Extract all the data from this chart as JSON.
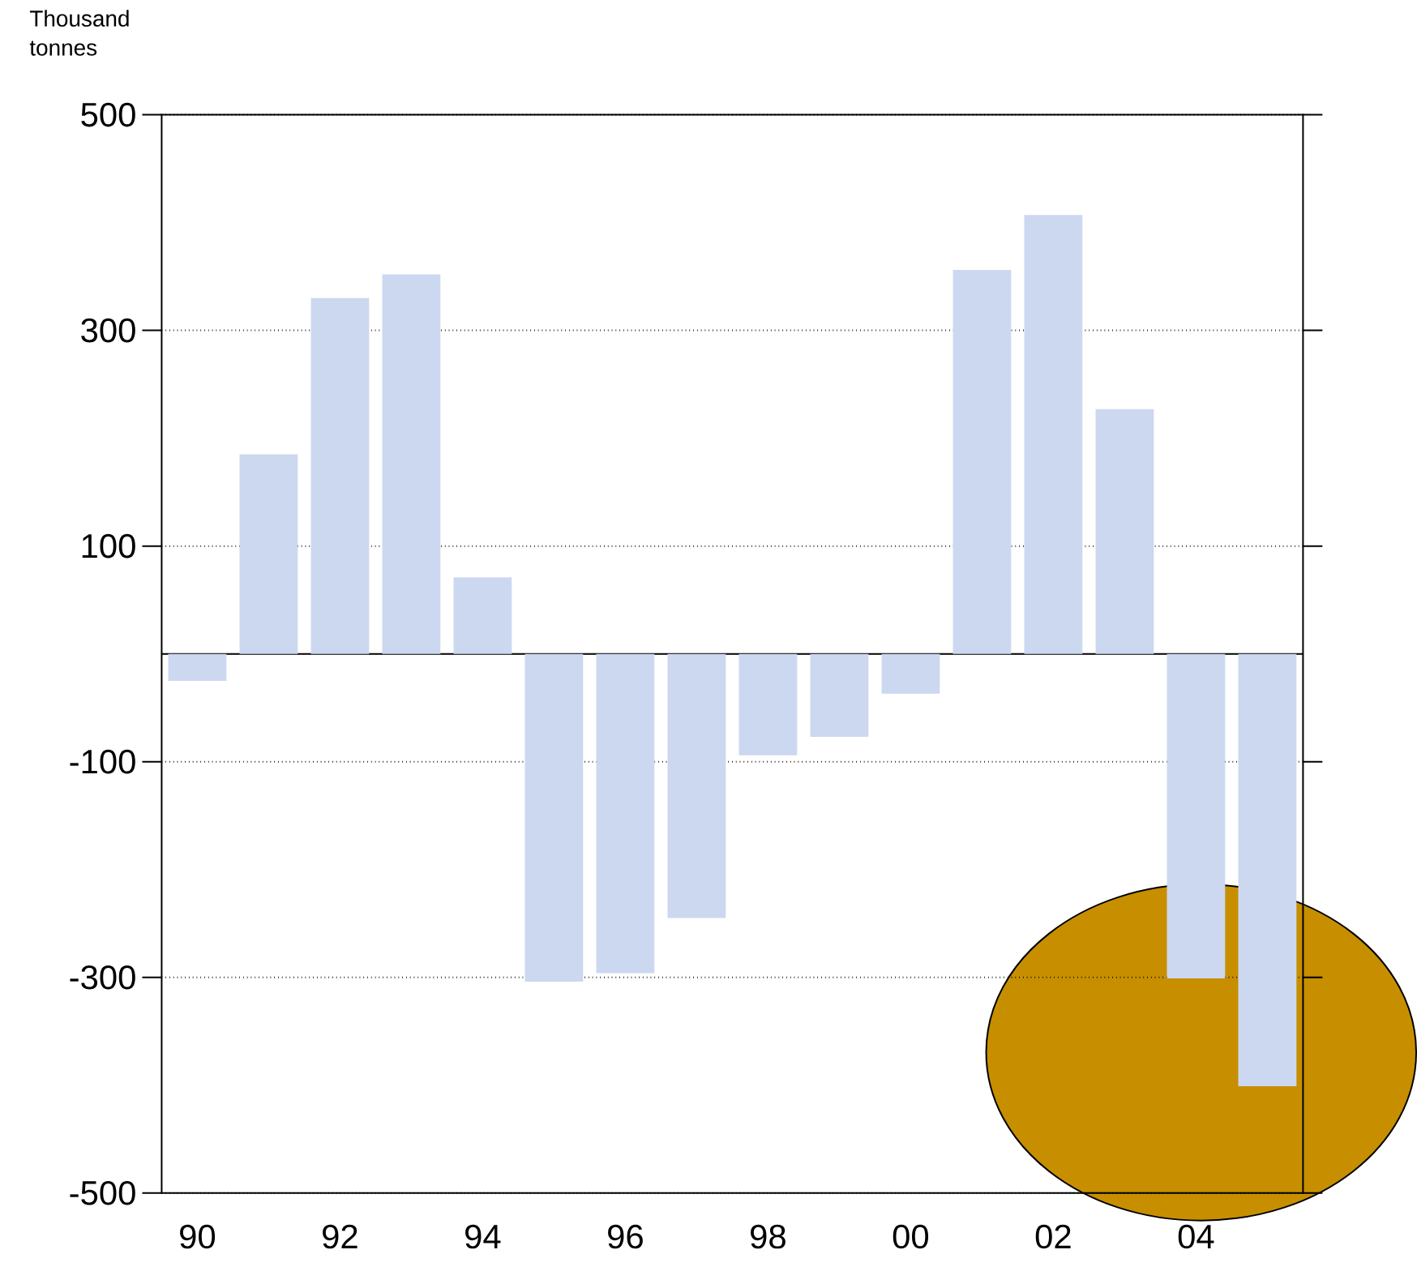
{
  "chart_data": {
    "type": "bar",
    "ylabel": "Thousand tonnes",
    "categories": [
      "90",
      null,
      "92",
      null,
      "94",
      null,
      "96",
      null,
      "98",
      null,
      "00",
      null,
      "02",
      null,
      "04",
      null
    ],
    "values": [
      -25,
      185,
      330,
      352,
      71,
      -304,
      -296,
      -245,
      -94,
      -77,
      -37,
      356,
      407,
      227,
      -301,
      -401
    ],
    "color": "#ccd8f0",
    "ylim": [
      -500,
      500
    ],
    "yticks": [
      500,
      300,
      100,
      -100,
      -300,
      -500
    ],
    "grid": "y"
  }
}
